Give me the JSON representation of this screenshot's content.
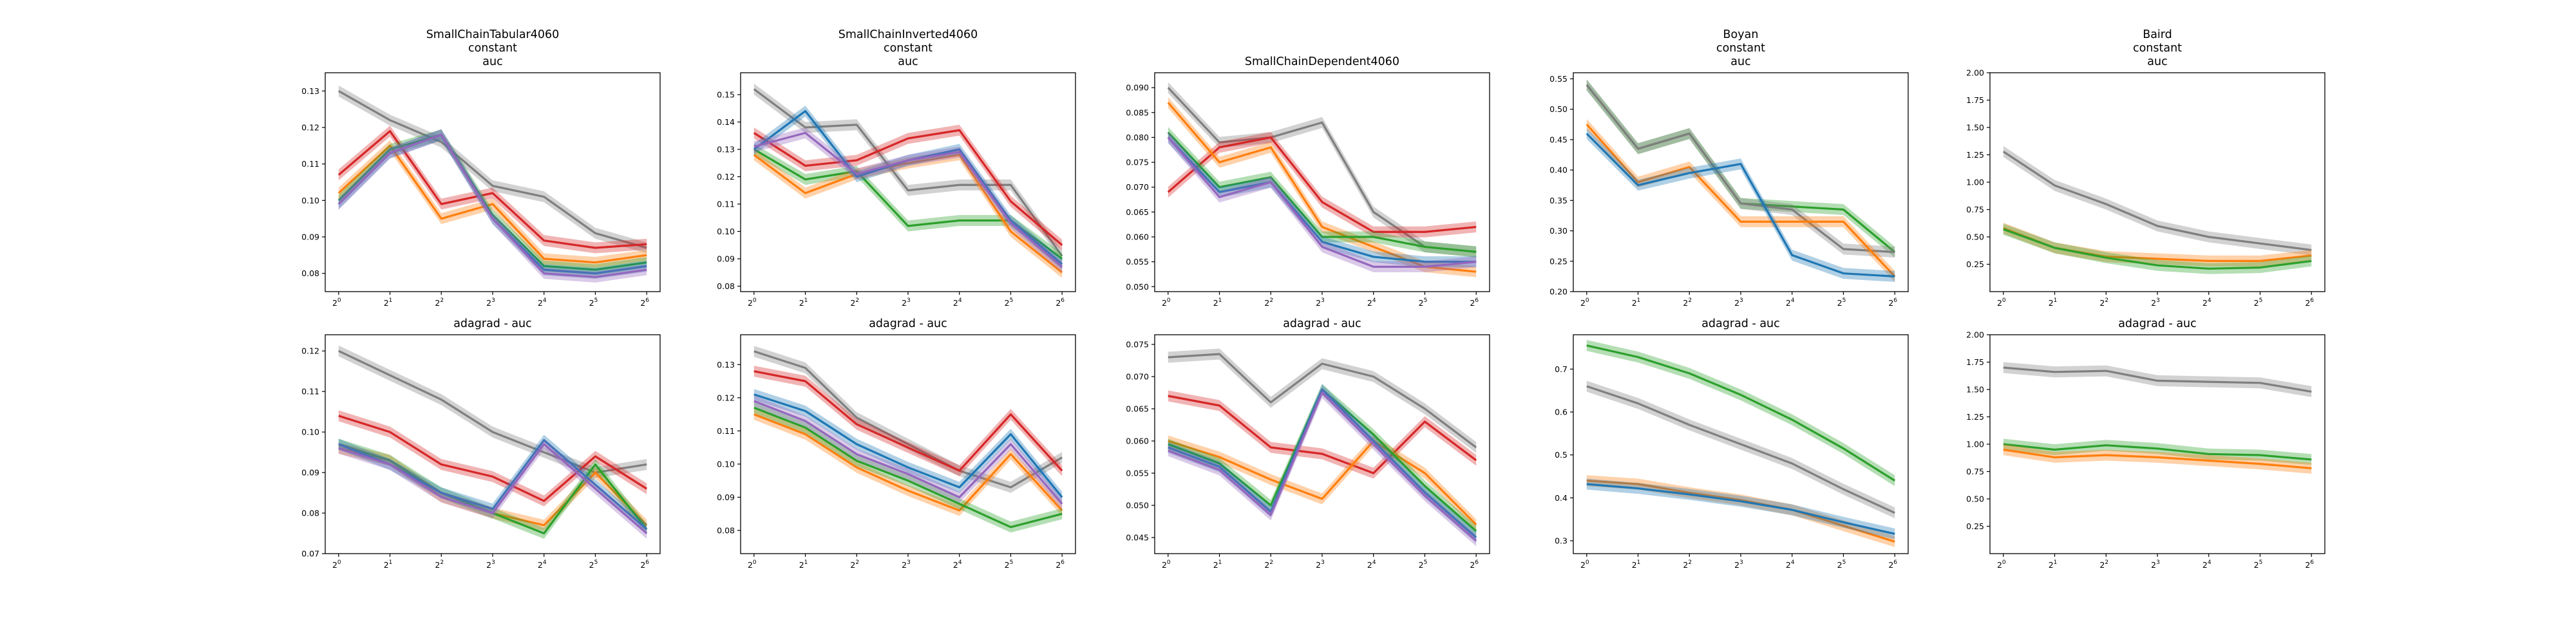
{
  "colors": {
    "blue": "#1f77b4",
    "orange": "#ff7f0e",
    "green": "#2ca02c",
    "red": "#d62728",
    "purple": "#9467bd",
    "grey": "#7f7f7f"
  },
  "x_tick_labels": [
    "2^0",
    "2^1",
    "2^2",
    "2^3",
    "2^4",
    "2^5",
    "2^6"
  ],
  "chart_data": [
    {
      "type": "line",
      "title_lines": [
        "SmallChainTabular4060",
        "constant",
        "auc"
      ],
      "x": [
        1,
        2,
        4,
        8,
        16,
        32,
        64
      ],
      "x_scale": "log2",
      "ylim": [
        0.075,
        0.135
      ],
      "yticks": [
        0.08,
        0.09,
        0.1,
        0.11,
        0.12,
        0.13
      ],
      "ytick_labels": [
        "0.08",
        "0.09",
        "0.10",
        "0.11",
        "0.12",
        "0.13"
      ],
      "series": [
        {
          "color": "grey",
          "values": [
            0.13,
            0.122,
            0.116,
            0.104,
            0.101,
            0.091,
            0.087
          ]
        },
        {
          "color": "red",
          "values": [
            0.107,
            0.119,
            0.099,
            0.102,
            0.089,
            0.087,
            0.088
          ]
        },
        {
          "color": "orange",
          "values": [
            0.102,
            0.115,
            0.095,
            0.099,
            0.084,
            0.083,
            0.085
          ]
        },
        {
          "color": "green",
          "values": [
            0.1,
            0.114,
            0.118,
            0.096,
            0.082,
            0.081,
            0.083
          ]
        },
        {
          "color": "blue",
          "values": [
            0.099,
            0.113,
            0.118,
            0.095,
            0.081,
            0.08,
            0.082
          ]
        },
        {
          "color": "purple",
          "values": [
            0.099,
            0.113,
            0.118,
            0.095,
            0.08,
            0.079,
            0.081
          ]
        }
      ]
    },
    {
      "type": "line",
      "title_lines": [
        "SmallChainInverted4060",
        "constant",
        "auc"
      ],
      "x": [
        1,
        2,
        4,
        8,
        16,
        32,
        64
      ],
      "x_scale": "log2",
      "ylim": [
        0.078,
        0.158
      ],
      "yticks": [
        0.08,
        0.09,
        0.1,
        0.11,
        0.12,
        0.13,
        0.14,
        0.15
      ],
      "ytick_labels": [
        "0.08",
        "0.09",
        "0.10",
        "0.11",
        "0.12",
        "0.13",
        "0.14",
        "0.15"
      ],
      "series": [
        {
          "color": "grey",
          "values": [
            0.152,
            0.138,
            0.139,
            0.115,
            0.117,
            0.117,
            0.091
          ]
        },
        {
          "color": "red",
          "values": [
            0.136,
            0.124,
            0.126,
            0.134,
            0.137,
            0.111,
            0.095
          ]
        },
        {
          "color": "green",
          "values": [
            0.13,
            0.119,
            0.122,
            0.102,
            0.104,
            0.104,
            0.09
          ]
        },
        {
          "color": "orange",
          "values": [
            0.128,
            0.114,
            0.121,
            0.125,
            0.128,
            0.1,
            0.085
          ]
        },
        {
          "color": "blue",
          "values": [
            0.13,
            0.144,
            0.12,
            0.126,
            0.13,
            0.104,
            0.088
          ]
        },
        {
          "color": "purple",
          "values": [
            0.131,
            0.136,
            0.121,
            0.126,
            0.129,
            0.103,
            0.087
          ]
        }
      ]
    },
    {
      "type": "line",
      "title_lines": [
        "SmallChainDependent4060"
      ],
      "x": [
        1,
        2,
        4,
        8,
        16,
        32,
        64
      ],
      "x_scale": "log2",
      "ylim": [
        0.049,
        0.093
      ],
      "yticks": [
        0.05,
        0.055,
        0.06,
        0.065,
        0.07,
        0.075,
        0.08,
        0.085,
        0.09
      ],
      "ytick_labels": [
        "0.050",
        "0.055",
        "0.060",
        "0.065",
        "0.070",
        "0.075",
        "0.080",
        "0.085",
        "0.090"
      ],
      "series": [
        {
          "color": "grey",
          "values": [
            0.09,
            0.079,
            0.08,
            0.083,
            0.065,
            0.058,
            0.057
          ]
        },
        {
          "color": "red",
          "values": [
            0.069,
            0.078,
            0.08,
            0.067,
            0.061,
            0.061,
            0.062
          ]
        },
        {
          "color": "orange",
          "values": [
            0.087,
            0.075,
            0.078,
            0.062,
            0.058,
            0.054,
            0.053
          ]
        },
        {
          "color": "green",
          "values": [
            0.081,
            0.07,
            0.072,
            0.06,
            0.06,
            0.058,
            0.057
          ]
        },
        {
          "color": "blue",
          "values": [
            0.08,
            0.069,
            0.071,
            0.059,
            0.056,
            0.055,
            0.055
          ]
        },
        {
          "color": "purple",
          "values": [
            0.08,
            0.068,
            0.071,
            0.058,
            0.054,
            0.054,
            0.055
          ]
        }
      ]
    },
    {
      "type": "line",
      "title_lines": [
        "Boyan",
        "constant",
        "auc"
      ],
      "x": [
        1,
        2,
        4,
        8,
        16,
        32,
        64
      ],
      "x_scale": "log2",
      "ylim": [
        0.2,
        0.56
      ],
      "yticks": [
        0.2,
        0.25,
        0.3,
        0.35,
        0.4,
        0.45,
        0.5,
        0.55
      ],
      "ytick_labels": [
        "0.20",
        "0.25",
        "0.30",
        "0.35",
        "0.40",
        "0.45",
        "0.50",
        "0.55"
      ],
      "series": [
        {
          "color": "green",
          "values": [
            0.54,
            0.435,
            0.46,
            0.345,
            0.34,
            0.335,
            0.265
          ]
        },
        {
          "color": "grey",
          "values": [
            0.54,
            0.435,
            0.46,
            0.345,
            0.335,
            0.27,
            0.265
          ]
        },
        {
          "color": "orange",
          "values": [
            0.475,
            0.38,
            0.405,
            0.315,
            0.315,
            0.315,
            0.225
          ]
        },
        {
          "color": "blue",
          "values": [
            0.46,
            0.375,
            0.395,
            0.41,
            0.26,
            0.23,
            0.225
          ]
        }
      ]
    },
    {
      "type": "line",
      "title_lines": [
        "Baird",
        "constant",
        "auc"
      ],
      "x": [
        1,
        2,
        4,
        8,
        16,
        32,
        64
      ],
      "x_scale": "log2",
      "ylim": [
        0.0,
        2.0
      ],
      "yticks": [
        0.25,
        0.5,
        0.75,
        1.0,
        1.25,
        1.5,
        1.75,
        2.0
      ],
      "ytick_labels": [
        "0.25",
        "0.50",
        "0.75",
        "1.00",
        "1.25",
        "1.50",
        "1.75",
        "2.00"
      ],
      "series": [
        {
          "color": "grey",
          "values": [
            1.28,
            0.97,
            0.8,
            0.6,
            0.5,
            0.44,
            0.38
          ]
        },
        {
          "color": "orange",
          "values": [
            0.58,
            0.4,
            0.32,
            0.3,
            0.28,
            0.28,
            0.33
          ]
        },
        {
          "color": "green",
          "values": [
            0.57,
            0.4,
            0.31,
            0.24,
            0.21,
            0.22,
            0.28
          ]
        }
      ]
    },
    {
      "type": "line",
      "title_lines": [
        "adagrad - auc"
      ],
      "x": [
        1,
        2,
        4,
        8,
        16,
        32,
        64
      ],
      "x_scale": "log2",
      "ylim": [
        0.07,
        0.124
      ],
      "yticks": [
        0.07,
        0.08,
        0.09,
        0.1,
        0.11,
        0.12
      ],
      "ytick_labels": [
        "0.07",
        "0.08",
        "0.09",
        "0.10",
        "0.11",
        "0.12"
      ],
      "series": [
        {
          "color": "grey",
          "values": [
            0.12,
            0.114,
            0.108,
            0.1,
            0.095,
            0.09,
            0.092
          ]
        },
        {
          "color": "red",
          "values": [
            0.104,
            0.1,
            0.092,
            0.089,
            0.083,
            0.094,
            0.086
          ]
        },
        {
          "color": "orange",
          "values": [
            0.096,
            0.093,
            0.084,
            0.08,
            0.077,
            0.09,
            0.077
          ]
        },
        {
          "color": "green",
          "values": [
            0.097,
            0.093,
            0.085,
            0.08,
            0.075,
            0.092,
            0.076
          ]
        },
        {
          "color": "blue",
          "values": [
            0.097,
            0.092,
            0.085,
            0.081,
            0.098,
            0.087,
            0.076
          ]
        },
        {
          "color": "purple",
          "values": [
            0.096,
            0.092,
            0.084,
            0.08,
            0.097,
            0.086,
            0.075
          ]
        }
      ]
    },
    {
      "type": "line",
      "title_lines": [
        "adagrad - auc"
      ],
      "x": [
        1,
        2,
        4,
        8,
        16,
        32,
        64
      ],
      "x_scale": "log2",
      "ylim": [
        0.073,
        0.139
      ],
      "yticks": [
        0.08,
        0.09,
        0.1,
        0.11,
        0.12,
        0.13
      ],
      "ytick_labels": [
        "0.08",
        "0.09",
        "0.10",
        "0.11",
        "0.12",
        "0.13"
      ],
      "series": [
        {
          "color": "grey",
          "values": [
            0.134,
            0.129,
            0.114,
            0.106,
            0.098,
            0.093,
            0.102
          ]
        },
        {
          "color": "red",
          "values": [
            0.128,
            0.125,
            0.112,
            0.105,
            0.098,
            0.115,
            0.098
          ]
        },
        {
          "color": "orange",
          "values": [
            0.115,
            0.109,
            0.099,
            0.092,
            0.086,
            0.103,
            0.086
          ]
        },
        {
          "color": "green",
          "values": [
            0.117,
            0.111,
            0.101,
            0.095,
            0.088,
            0.081,
            0.085
          ]
        },
        {
          "color": "blue",
          "values": [
            0.121,
            0.116,
            0.106,
            0.099,
            0.093,
            0.109,
            0.09
          ]
        },
        {
          "color": "purple",
          "values": [
            0.119,
            0.113,
            0.103,
            0.097,
            0.09,
            0.106,
            0.088
          ]
        }
      ]
    },
    {
      "type": "line",
      "title_lines": [
        "adagrad - auc"
      ],
      "x": [
        1,
        2,
        4,
        8,
        16,
        32,
        64
      ],
      "x_scale": "log2",
      "ylim": [
        0.0425,
        0.0765
      ],
      "yticks": [
        0.045,
        0.05,
        0.055,
        0.06,
        0.065,
        0.07,
        0.075
      ],
      "ytick_labels": [
        "0.045",
        "0.050",
        "0.055",
        "0.060",
        "0.065",
        "0.070",
        "0.075"
      ],
      "series": [
        {
          "color": "grey",
          "values": [
            0.073,
            0.0735,
            0.066,
            0.072,
            0.07,
            0.065,
            0.059
          ]
        },
        {
          "color": "red",
          "values": [
            0.067,
            0.0655,
            0.059,
            0.058,
            0.055,
            0.063,
            0.057
          ]
        },
        {
          "color": "orange",
          "values": [
            0.06,
            0.0575,
            0.054,
            0.051,
            0.06,
            0.055,
            0.047
          ]
        },
        {
          "color": "green",
          "values": [
            0.0595,
            0.0565,
            0.05,
            0.068,
            0.061,
            0.053,
            0.046
          ]
        },
        {
          "color": "blue",
          "values": [
            0.059,
            0.056,
            0.049,
            0.068,
            0.06,
            0.052,
            0.045
          ]
        },
        {
          "color": "purple",
          "values": [
            0.0585,
            0.0555,
            0.0485,
            0.0675,
            0.0595,
            0.0515,
            0.0445
          ]
        }
      ]
    },
    {
      "type": "line",
      "title_lines": [
        "adagrad - auc"
      ],
      "x": [
        1,
        2,
        4,
        8,
        16,
        32,
        64
      ],
      "x_scale": "log2",
      "ylim": [
        0.27,
        0.78
      ],
      "yticks": [
        0.3,
        0.4,
        0.5,
        0.6,
        0.7
      ],
      "ytick_labels": [
        "0.3",
        "0.4",
        "0.5",
        "0.6",
        "0.7"
      ],
      "series": [
        {
          "color": "green",
          "values": [
            0.755,
            0.728,
            0.69,
            0.64,
            0.582,
            0.515,
            0.44
          ]
        },
        {
          "color": "grey",
          "values": [
            0.66,
            0.62,
            0.57,
            0.525,
            0.48,
            0.42,
            0.365
          ]
        },
        {
          "color": "orange",
          "values": [
            0.44,
            0.432,
            0.412,
            0.395,
            0.372,
            0.335,
            0.298
          ]
        },
        {
          "color": "blue",
          "values": [
            0.432,
            0.422,
            0.408,
            0.392,
            0.372,
            0.343,
            0.316
          ]
        }
      ]
    },
    {
      "type": "line",
      "title_lines": [
        "adagrad - auc"
      ],
      "x": [
        1,
        2,
        4,
        8,
        16,
        32,
        64
      ],
      "x_scale": "log2",
      "ylim": [
        0.0,
        2.0
      ],
      "yticks": [
        0.25,
        0.5,
        0.75,
        1.0,
        1.25,
        1.5,
        1.75,
        2.0
      ],
      "ytick_labels": [
        "0.25",
        "0.50",
        "0.75",
        "1.00",
        "1.25",
        "1.50",
        "1.75",
        "2.00"
      ],
      "series": [
        {
          "color": "grey",
          "values": [
            1.7,
            1.66,
            1.67,
            1.58,
            1.57,
            1.56,
            1.48
          ]
        },
        {
          "color": "green",
          "values": [
            1.0,
            0.95,
            0.99,
            0.96,
            0.91,
            0.9,
            0.86
          ]
        },
        {
          "color": "orange",
          "values": [
            0.95,
            0.88,
            0.9,
            0.88,
            0.85,
            0.82,
            0.78
          ]
        }
      ]
    }
  ]
}
